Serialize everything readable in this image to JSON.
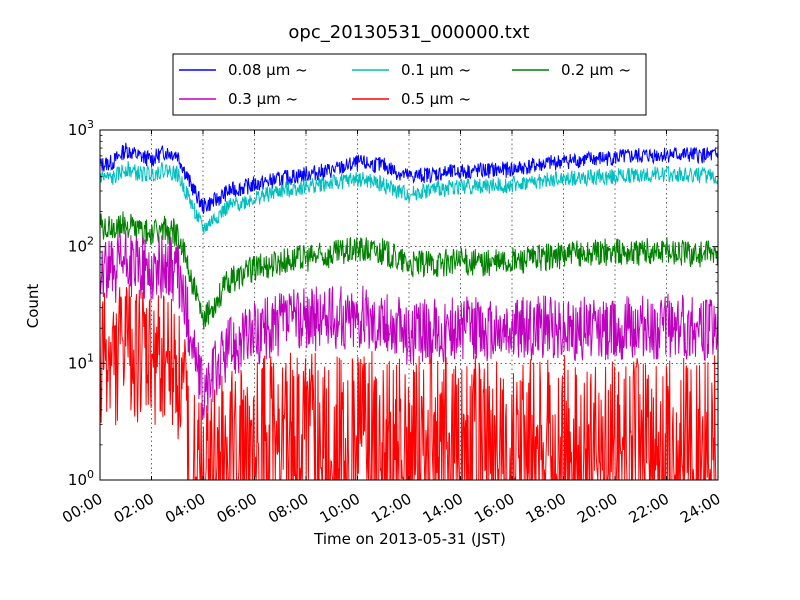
{
  "chart_data": {
    "type": "line",
    "title": "opc_20130531_000000.txt",
    "xlabel": "Time on 2013-05-31 (JST)",
    "ylabel": "Count",
    "x_ticks": [
      "00:00",
      "02:00",
      "04:00",
      "06:00",
      "08:00",
      "10:00",
      "12:00",
      "14:00",
      "16:00",
      "18:00",
      "20:00",
      "22:00",
      "24:00"
    ],
    "xlim": [
      0,
      24
    ],
    "y_scale": "log",
    "ylim": [
      1,
      1000
    ],
    "y_ticks": [
      {
        "base": "10",
        "exp": "0"
      },
      {
        "base": "10",
        "exp": "1"
      },
      {
        "base": "10",
        "exp": "2"
      },
      {
        "base": "10",
        "exp": "3"
      }
    ],
    "grid": true,
    "legend_position": "top-center",
    "x_hours": [
      0,
      0.5,
      1,
      1.5,
      2,
      2.5,
      3,
      3.5,
      4,
      4.5,
      5,
      6,
      7,
      8,
      9,
      10,
      11,
      11.5,
      12,
      13,
      14,
      15,
      16,
      17,
      18,
      19,
      20,
      21,
      22,
      23,
      24
    ],
    "series": [
      {
        "name": "0.08 μm ~",
        "color": "#0000ff",
        "values": [
          500,
          530,
          680,
          600,
          560,
          650,
          620,
          350,
          220,
          250,
          300,
          340,
          380,
          420,
          450,
          520,
          500,
          440,
          400,
          420,
          440,
          450,
          460,
          500,
          540,
          560,
          580,
          600,
          620,
          610,
          600
        ]
      },
      {
        "name": "0.1 μm ~",
        "color": "#00bfbf",
        "values": [
          400,
          380,
          470,
          420,
          420,
          460,
          420,
          250,
          140,
          180,
          220,
          260,
          300,
          330,
          350,
          380,
          340,
          300,
          280,
          310,
          330,
          330,
          340,
          360,
          380,
          390,
          400,
          410,
          420,
          410,
          400
        ]
      },
      {
        "name": "0.2 μm ~",
        "color": "#008000",
        "values": [
          150,
          140,
          160,
          140,
          130,
          140,
          130,
          60,
          22,
          35,
          50,
          65,
          75,
          80,
          85,
          95,
          90,
          80,
          70,
          72,
          75,
          72,
          75,
          80,
          85,
          88,
          90,
          90,
          92,
          88,
          85
        ]
      },
      {
        "name": "0.3 μm ~",
        "color": "#bf00bf",
        "values": [
          65,
          60,
          75,
          65,
          60,
          70,
          60,
          20,
          5,
          9,
          14,
          18,
          22,
          24,
          24,
          25,
          22,
          20,
          18,
          19,
          20,
          19,
          19,
          20,
          20,
          20,
          20,
          20,
          21,
          20,
          20
        ]
      },
      {
        "name": "0.5 μm ~",
        "color": "#ff0000",
        "values": [
          12,
          10,
          14,
          11,
          10,
          12,
          9,
          3,
          1.5,
          2,
          2.5,
          3,
          3.5,
          3.5,
          3.5,
          3.5,
          3,
          3,
          3,
          3,
          3,
          3,
          3,
          3,
          3,
          3,
          3,
          3,
          3,
          3,
          3
        ]
      }
    ]
  }
}
